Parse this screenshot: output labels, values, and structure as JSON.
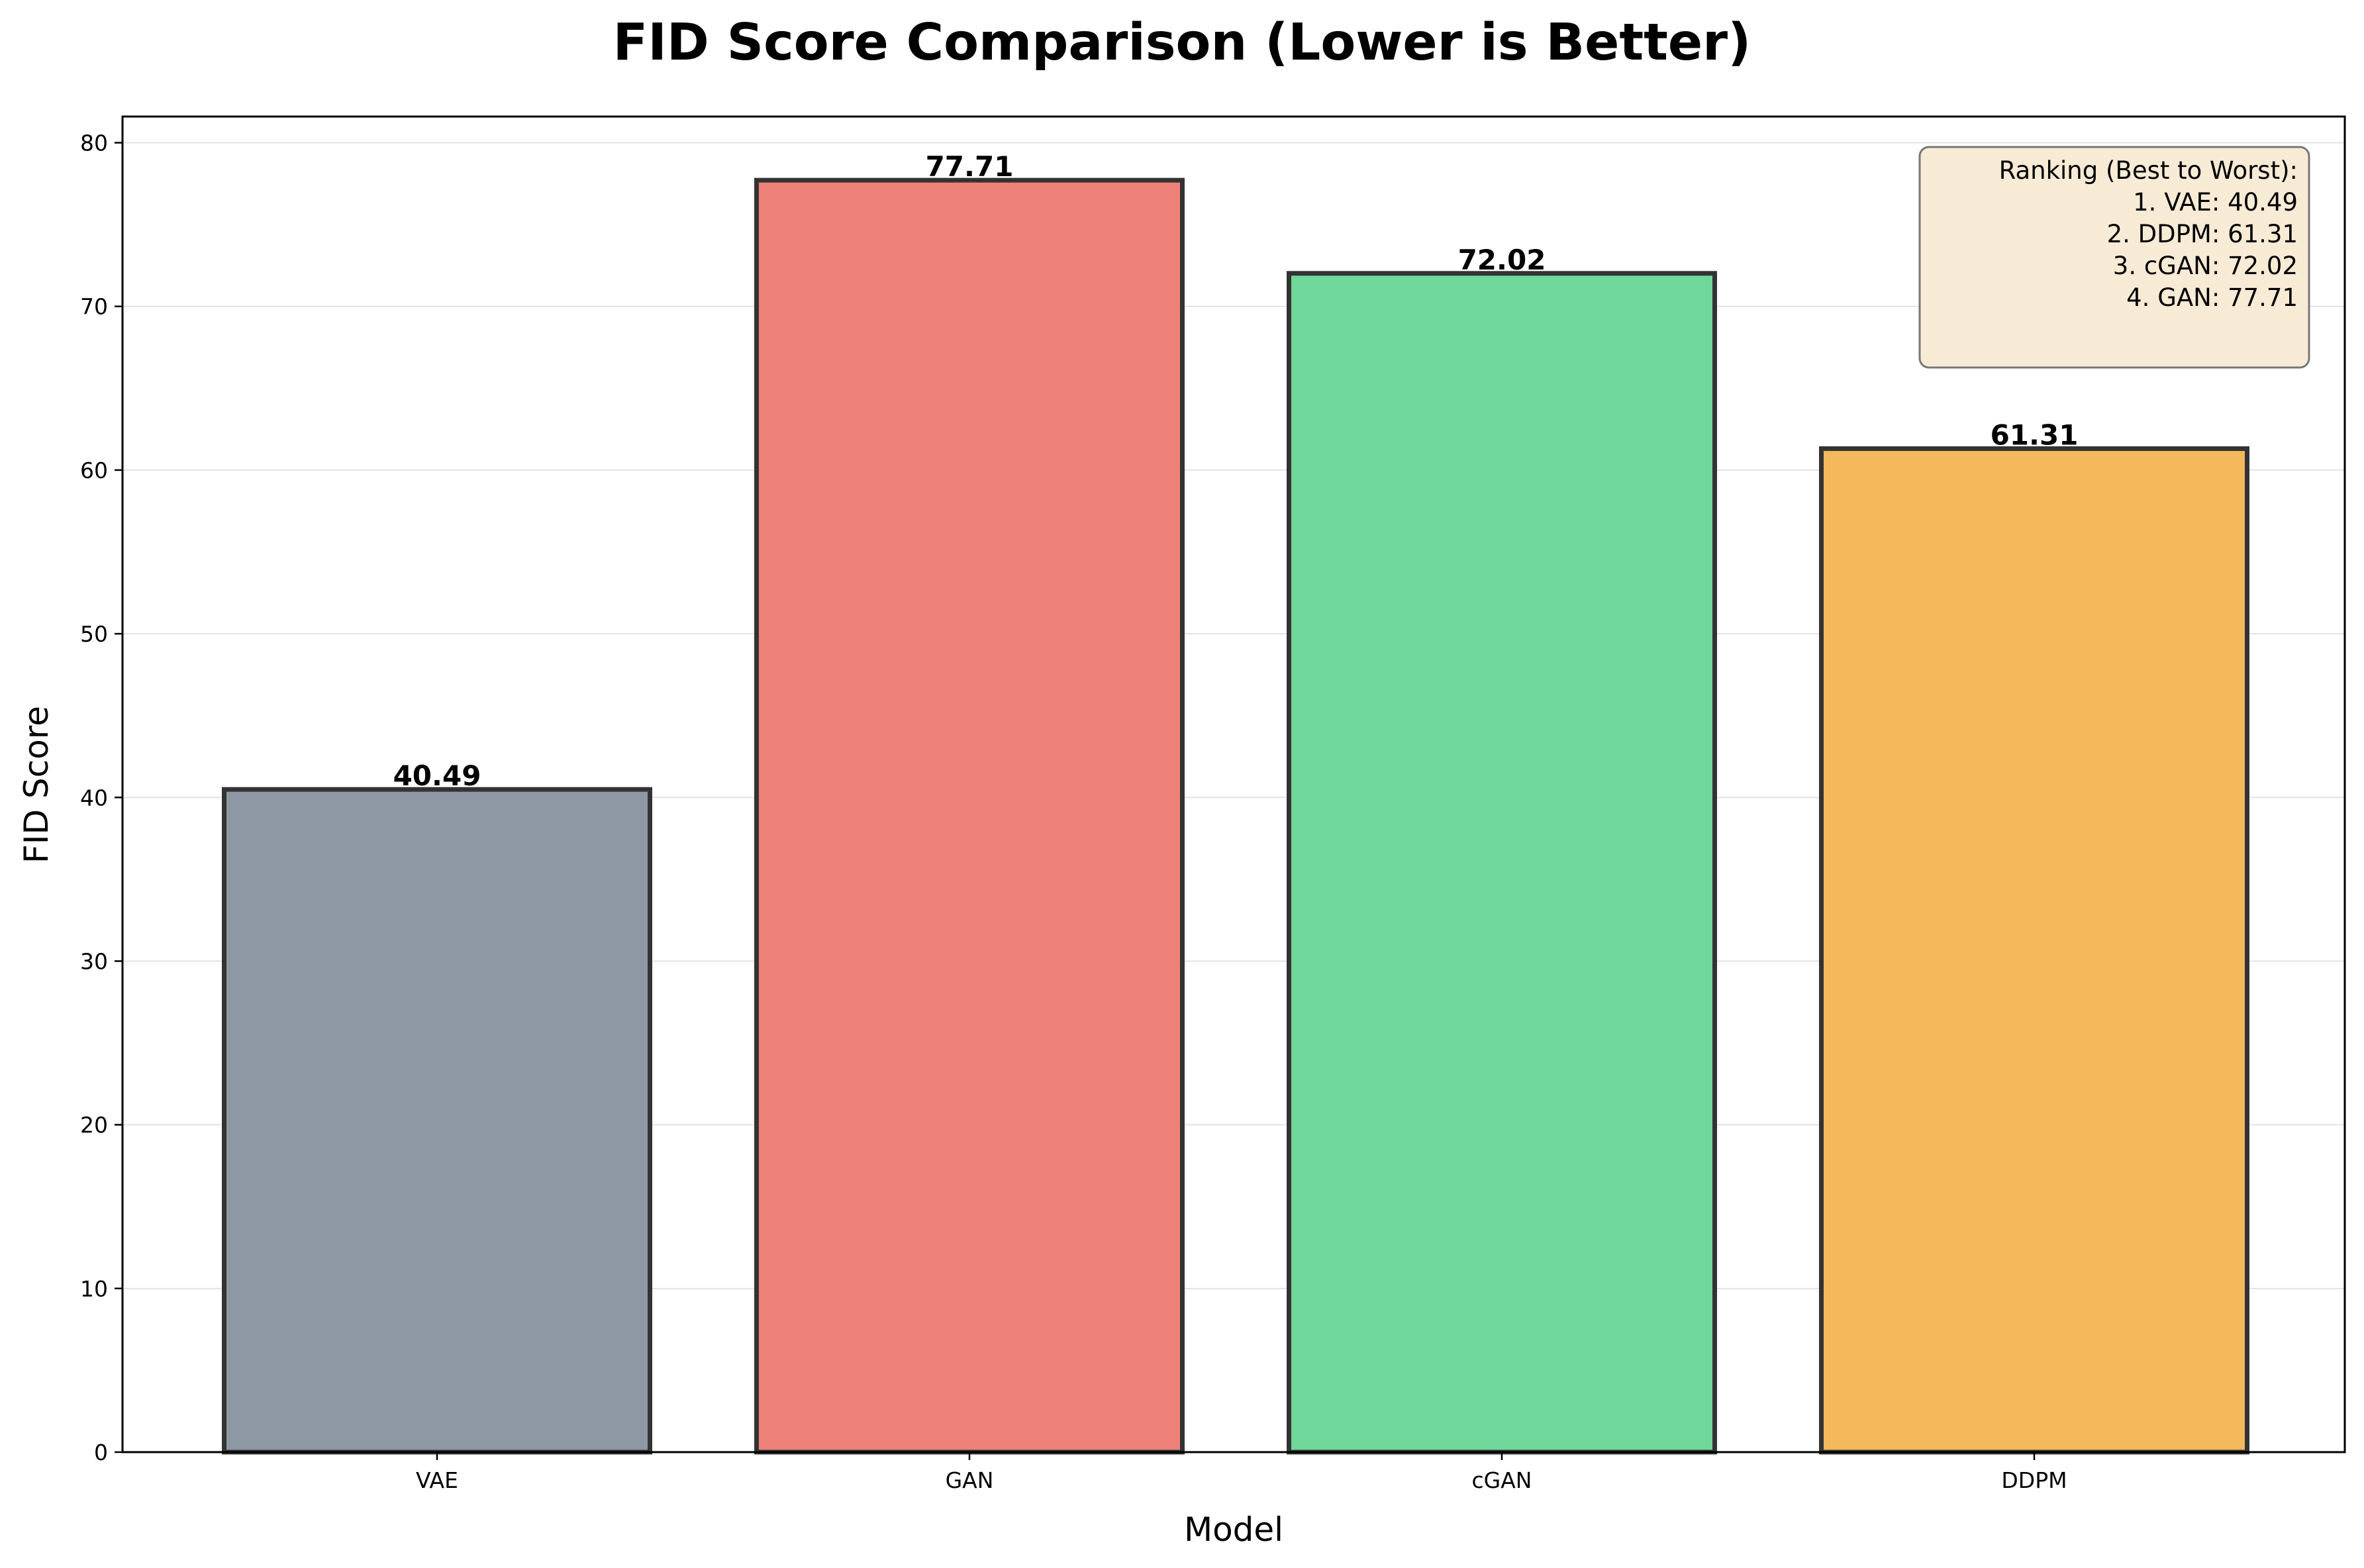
{
  "chart_data": {
    "type": "bar",
    "title": "FID Score Comparison (Lower is Better)",
    "xlabel": "Model",
    "ylabel": "FID Score",
    "categories": [
      "VAE",
      "GAN",
      "cGAN",
      "DDPM"
    ],
    "values": [
      40.49,
      77.71,
      72.02,
      61.31
    ],
    "data_labels": [
      "40.49",
      "77.71",
      "72.02",
      "61.31"
    ],
    "colors": [
      "#8e98a4",
      "#ee8177",
      "#6fd89a",
      "#f3b95b"
    ],
    "edge_color": "#333333",
    "ylim": [
      0,
      81.6
    ],
    "yticks": [
      0,
      10,
      20,
      30,
      40,
      50,
      60,
      70,
      80
    ],
    "ytick_labels": [
      "0",
      "10",
      "20",
      "30",
      "40",
      "50",
      "60",
      "70",
      "80"
    ],
    "grid": "y",
    "annotation": {
      "placement": "top-right",
      "lines": [
        "Ranking (Best to Worst):",
        "1. VAE: 40.49",
        "2. DDPM: 61.31",
        "3. cGAN: 72.02",
        "4. GAN: 77.71"
      ],
      "background": "#f8ebd6",
      "border": "#777777"
    }
  }
}
